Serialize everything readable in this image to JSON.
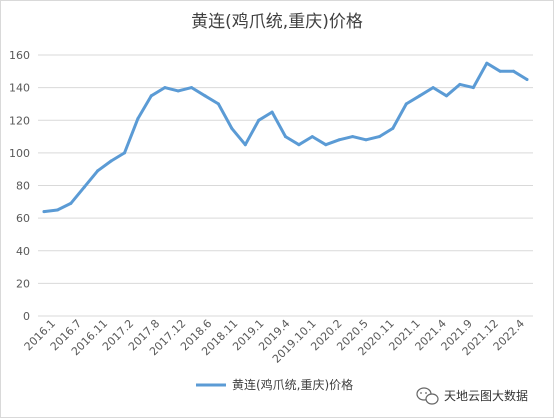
{
  "chart_data": {
    "type": "line",
    "title": "黄连(鸡爪统,重庆)价格",
    "xlabel": "",
    "ylabel": "",
    "ylim": [
      0,
      160
    ],
    "yticks": [
      0,
      20,
      40,
      60,
      80,
      100,
      120,
      140,
      160
    ],
    "grid": true,
    "legend_position": "bottom",
    "x_tick_labels": [
      "2016.1",
      "2016.7",
      "2016.11",
      "2017.2",
      "2017.8",
      "2017.12",
      "2018.6",
      "2018.11",
      "2019.1",
      "2019.4",
      "2019.10.1",
      "2020.2",
      "2020.5",
      "2020.11",
      "2021.1",
      "2021.4",
      "2021.9",
      "2021.12",
      "2022.4"
    ],
    "series": [
      {
        "name": "黄连(鸡爪统,重庆)价格",
        "color": "#5b9bd5",
        "values": [
          64,
          65,
          69,
          79,
          89,
          95,
          100,
          121,
          135,
          140,
          138,
          140,
          135,
          130,
          115,
          105,
          120,
          125,
          110,
          105,
          110,
          105,
          108,
          110,
          108,
          110,
          115,
          130,
          135,
          140,
          135,
          142,
          140,
          155,
          150,
          150,
          145
        ]
      }
    ]
  },
  "watermark": {
    "icon": "wechat-icon",
    "text": "天地云图大数据"
  }
}
